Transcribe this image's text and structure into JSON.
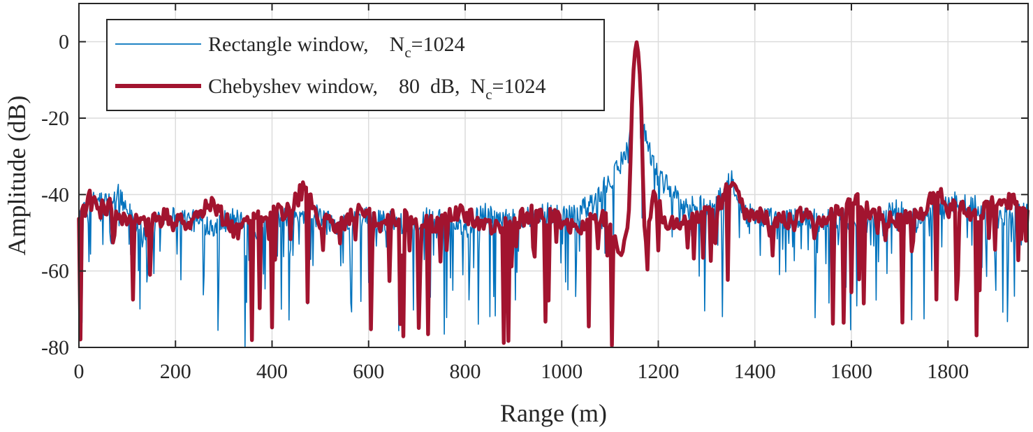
{
  "chart_data": {
    "type": "line",
    "title": "",
    "xlabel": "Range (m)",
    "ylabel": "Amplitude (dB)",
    "xlim": [
      0,
      1966
    ],
    "ylim": [
      -80,
      10
    ],
    "xticks": [
      0,
      200,
      400,
      600,
      800,
      1000,
      1200,
      1400,
      1600,
      1800
    ],
    "yticks": [
      -80,
      -60,
      -40,
      -20,
      0
    ],
    "grid": true,
    "legend_position": "top-left",
    "series": [
      {
        "name": "Rectangle window,    N_c=1024",
        "legend_parts": [
          "Rectangle window,    N",
          "c",
          "=1024"
        ],
        "color": "#0072BD",
        "style": "thin",
        "peak_at": 1155,
        "noise_floor_db": -47,
        "x": [
          0,
          20,
          40,
          60,
          80,
          100,
          120,
          140,
          160,
          180,
          200,
          240,
          280,
          320,
          360,
          400,
          440,
          480,
          520,
          560,
          600,
          640,
          680,
          720,
          760,
          800,
          840,
          880,
          920,
          960,
          1000,
          1040,
          1070,
          1090,
          1110,
          1125,
          1135,
          1145,
          1150,
          1155,
          1160,
          1165,
          1175,
          1185,
          1200,
          1220,
          1240,
          1260,
          1280,
          1300,
          1340,
          1350,
          1380,
          1420,
          1460,
          1500,
          1540,
          1580,
          1620,
          1660,
          1700,
          1740,
          1780,
          1820,
          1860,
          1900,
          1940,
          1966
        ],
        "y": [
          -47,
          -43,
          -41,
          -42,
          -40,
          -44,
          -46,
          -52,
          -48,
          -45,
          -46,
          -47,
          -48,
          -46,
          -50,
          -47,
          -46,
          -45,
          -47,
          -48,
          -46,
          -47,
          -48,
          -46,
          -47,
          -48,
          -45,
          -47,
          -46,
          -45,
          -45,
          -44,
          -42,
          -38,
          -35,
          -31,
          -27,
          -22,
          -10,
          0,
          -10,
          -21,
          -24,
          -30,
          -36,
          -38,
          -41,
          -44,
          -42,
          -44,
          -40,
          -35,
          -45,
          -46,
          -47,
          -46,
          -47,
          -46,
          -48,
          -46,
          -44,
          -46,
          -44,
          -42,
          -43,
          -45,
          -46,
          -44
        ]
      },
      {
        "name": "Chebyshev window,    80  dB,  N_c=1024",
        "legend_parts": [
          "Chebyshev window,    80  dB,  N",
          "c",
          "=1024"
        ],
        "color": "#A2142F",
        "style": "thick",
        "peak_at": 1155,
        "noise_floor_db": -48,
        "x": [
          0,
          20,
          40,
          60,
          80,
          100,
          120,
          140,
          160,
          180,
          200,
          240,
          280,
          320,
          360,
          400,
          440,
          470,
          500,
          540,
          580,
          620,
          660,
          700,
          740,
          780,
          820,
          860,
          900,
          940,
          980,
          1020,
          1060,
          1090,
          1110,
          1125,
          1135,
          1140,
          1145,
          1150,
          1155,
          1160,
          1165,
          1170,
          1175,
          1190,
          1210,
          1240,
          1280,
          1320,
          1350,
          1380,
          1420,
          1460,
          1500,
          1540,
          1580,
          1620,
          1660,
          1700,
          1740,
          1780,
          1820,
          1860,
          1900,
          1940,
          1966
        ],
        "y": [
          -47,
          -41,
          -44,
          -43,
          -45,
          -48,
          -46,
          -49,
          -47,
          -46,
          -48,
          -46,
          -42,
          -50,
          -46,
          -45,
          -44,
          -37,
          -47,
          -48,
          -43,
          -48,
          -46,
          -47,
          -48,
          -45,
          -46,
          -49,
          -47,
          -45,
          -46,
          -49,
          -47,
          -46,
          -52,
          -56,
          -50,
          -44,
          -18,
          -4,
          0,
          -4,
          -18,
          -46,
          -52,
          -40,
          -46,
          -48,
          -46,
          -44,
          -37,
          -44,
          -46,
          -47,
          -45,
          -48,
          -44,
          -42,
          -46,
          -47,
          -45,
          -40,
          -43,
          -46,
          -42,
          -41,
          -44
        ]
      }
    ]
  }
}
